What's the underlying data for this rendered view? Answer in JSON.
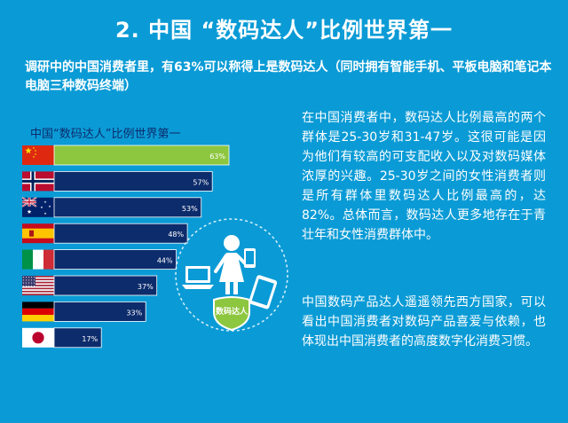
{
  "page": {
    "title": "2. 中国 “数码达人”比例世界第一",
    "subtitle": "调研中的中国消费者里，有63%可以称得上是数码达人（同时拥有智能手机、平板电脑和笔记本电脑三种数码终端）"
  },
  "chart_data": {
    "type": "bar",
    "orientation": "horizontal",
    "title": "中国“数码达人”比例世界第一",
    "categories": [
      "China",
      "Norway",
      "Australia",
      "Spain",
      "Italy",
      "United States",
      "Germany",
      "Japan"
    ],
    "values": [
      63,
      57,
      53,
      48,
      44,
      37,
      33,
      17
    ],
    "data_labels": [
      "63%",
      "57%",
      "53%",
      "48%",
      "44%",
      "37%",
      "33%",
      "17%"
    ],
    "xlim": [
      0,
      63
    ],
    "highlight_category": "China",
    "colors": {
      "highlight": "#8dc63f",
      "bar": "#0d2c6c",
      "label_highlight": "#ffffff",
      "label": "#ffffff"
    }
  },
  "illustration": {
    "badge_label": "数码达人",
    "icons": [
      "woman-icon",
      "smartphone-icon",
      "laptop-icon",
      "tablet-icon",
      "shield-icon"
    ]
  },
  "text": {
    "paragraph_1": "在中国消费者中，数码达人比例最高的两个群体是25-30岁和31-47岁。这很可能是因为他们有较高的可支配收入以及对数码媒体浓厚的兴趣。25-30岁之间的女性消费者则是所有群体里数码达人比例最高的，达82%。总体而言，数码达人更多地存在于青壮年和女性消费群体中。",
    "paragraph_2": "中国数码产品达人遥遥领先西方国家，可以看出中国消费者对数码产品喜爱与依赖，也体现出中国消费者的高度数字化消费习惯。"
  },
  "colors": {
    "background": "#0a9bd6",
    "dark_blue": "#0d2c6c",
    "green": "#8dc63f"
  }
}
